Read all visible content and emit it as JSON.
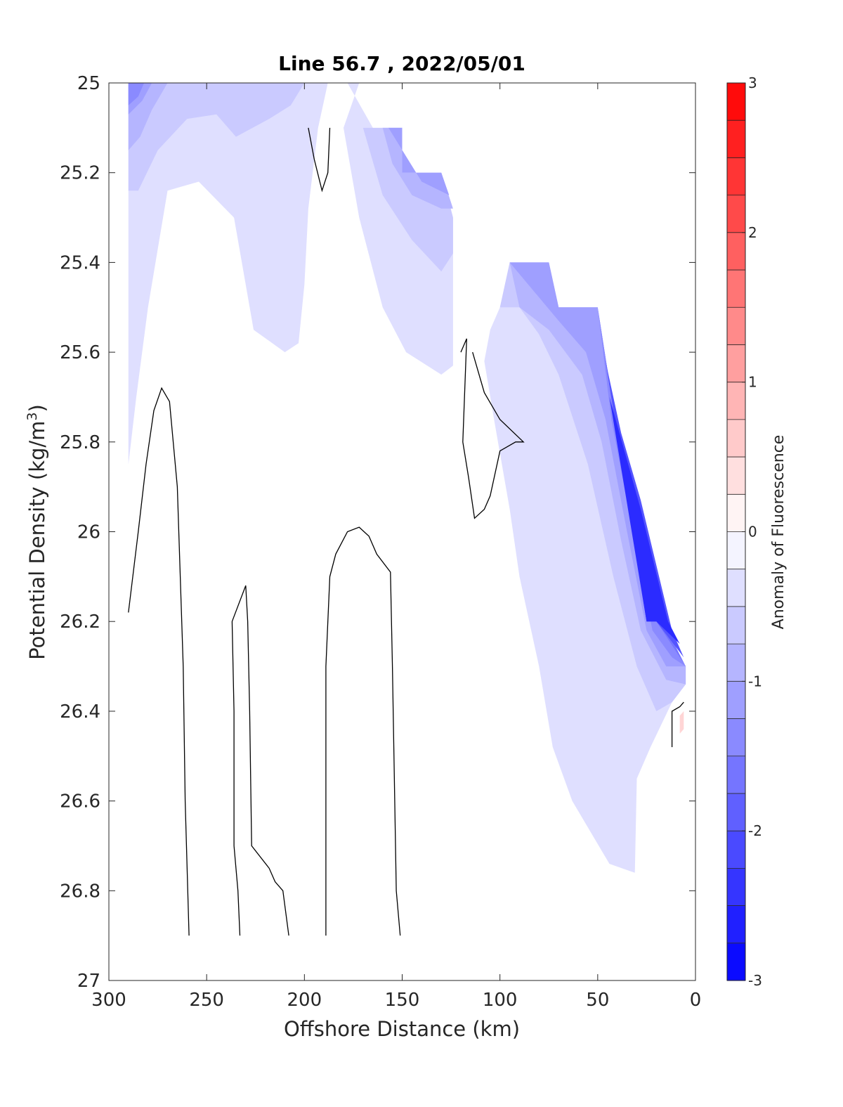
{
  "chart_data": {
    "type": "contour",
    "title": "Line 56.7 , 2022/05/01",
    "xlabel": "Offshore Distance (km)",
    "ylabel": "Potential Density (kg/m",
    "ylabel_sup": "3",
    "ylabel_tail": ")",
    "xlim": [
      300,
      0
    ],
    "ylim": [
      25,
      27
    ],
    "x_reversed": true,
    "y_reversed": true,
    "xticks": [
      300,
      250,
      200,
      150,
      100,
      50,
      0
    ],
    "xtick_labels": [
      "300",
      "250",
      "200",
      "150",
      "100",
      "50",
      "0"
    ],
    "yticks": [
      25,
      25.2,
      25.4,
      25.6,
      25.8,
      26,
      26.2,
      26.4,
      26.6,
      26.8,
      27
    ],
    "ytick_labels": [
      "25",
      "25.2",
      "25.4",
      "25.6",
      "25.8",
      "26",
      "26.2",
      "26.4",
      "26.6",
      "26.8",
      "27"
    ],
    "colorbar": {
      "label": "Anomaly of Fluorescence",
      "range": [
        -3,
        3
      ],
      "step": 0.25,
      "ticks": [
        -3,
        -2,
        -1,
        0,
        1,
        2,
        3
      ],
      "tick_labels": [
        "-3",
        "-2",
        "-1",
        "0",
        "1",
        "2",
        "3"
      ],
      "min_color": "#0000ff",
      "mid_color": "#ffffff",
      "max_color": "#ff0000"
    },
    "filled_regions": [
      {
        "name": "north-surface-layer",
        "level": -0.375,
        "points": [
          [
            290,
            25
          ],
          [
            188,
            25
          ],
          [
            193,
            25.1
          ],
          [
            198,
            25.28
          ],
          [
            200,
            25.45
          ],
          [
            203,
            25.58
          ],
          [
            210,
            25.6
          ],
          [
            226,
            25.55
          ],
          [
            236,
            25.3
          ],
          [
            254,
            25.22
          ],
          [
            270,
            25.24
          ],
          [
            280,
            25.5
          ],
          [
            286,
            25.7
          ],
          [
            290,
            25.85
          ]
        ]
      },
      {
        "name": "north-band-1",
        "level": -0.625,
        "points": [
          [
            290,
            25
          ],
          [
            200,
            25
          ],
          [
            207,
            25.05
          ],
          [
            218,
            25.08
          ],
          [
            235,
            25.12
          ],
          [
            245,
            25.07
          ],
          [
            260,
            25.08
          ],
          [
            275,
            25.15
          ],
          [
            285,
            25.24
          ],
          [
            290,
            25.24
          ]
        ]
      },
      {
        "name": "north-band-2",
        "level": -0.875,
        "points": [
          [
            290,
            25
          ],
          [
            270,
            25
          ],
          [
            278,
            25.06
          ],
          [
            284,
            25.12
          ],
          [
            290,
            25.15
          ]
        ]
      },
      {
        "name": "north-band-3",
        "level": -1.125,
        "points": [
          [
            290,
            25
          ],
          [
            278,
            25
          ],
          [
            283,
            25.04
          ],
          [
            290,
            25.07
          ]
        ]
      },
      {
        "name": "north-band-4",
        "level": -1.375,
        "points": [
          [
            290,
            25
          ],
          [
            282,
            25
          ],
          [
            285,
            25.03
          ],
          [
            290,
            25.05
          ]
        ]
      },
      {
        "name": "mid-upper-layer",
        "level": -0.375,
        "points": [
          [
            178,
            25
          ],
          [
            172,
            25
          ],
          [
            180,
            25.1
          ],
          [
            172,
            25.3
          ],
          [
            160,
            25.5
          ],
          [
            148,
            25.6
          ],
          [
            130,
            25.65
          ],
          [
            124,
            25.63
          ],
          [
            124,
            25.3
          ],
          [
            130,
            25.2
          ],
          [
            150,
            25.2
          ],
          [
            150,
            25.1
          ],
          [
            165,
            25.1
          ]
        ]
      },
      {
        "name": "mid-band-1",
        "level": -0.625,
        "points": [
          [
            170,
            25.1
          ],
          [
            150,
            25.1
          ],
          [
            150,
            25.2
          ],
          [
            130,
            25.2
          ],
          [
            124,
            25.3
          ],
          [
            124,
            25.38
          ],
          [
            130,
            25.42
          ],
          [
            145,
            25.35
          ],
          [
            160,
            25.25
          ]
        ]
      },
      {
        "name": "mid-band-2",
        "level": -0.875,
        "points": [
          [
            160,
            25.1
          ],
          [
            150,
            25.1
          ],
          [
            150,
            25.2
          ],
          [
            130,
            25.2
          ],
          [
            124,
            25.28
          ],
          [
            130,
            25.28
          ],
          [
            145,
            25.25
          ],
          [
            155,
            25.18
          ]
        ]
      },
      {
        "name": "mid-band-3",
        "level": -1.125,
        "points": [
          [
            157,
            25.1
          ],
          [
            150,
            25.1
          ],
          [
            150,
            25.2
          ],
          [
            130,
            25.2
          ],
          [
            126,
            25.25
          ],
          [
            140,
            25.22
          ]
        ]
      },
      {
        "name": "coastal-layer",
        "level": -0.375,
        "points": [
          [
            100,
            25.5
          ],
          [
            105,
            25.55
          ],
          [
            108,
            25.62
          ],
          [
            103,
            25.75
          ],
          [
            95,
            25.95
          ],
          [
            90,
            26.1
          ],
          [
            80,
            26.3
          ],
          [
            73,
            26.48
          ],
          [
            63,
            26.6
          ],
          [
            44,
            26.74
          ],
          [
            31,
            26.76
          ],
          [
            30,
            26.55
          ],
          [
            23,
            26.48
          ],
          [
            12,
            26.38
          ],
          [
            5,
            26.34
          ],
          [
            5,
            26.3
          ],
          [
            20,
            26.2
          ],
          [
            25,
            26.2
          ],
          [
            50,
            25.5
          ],
          [
            55,
            25.5
          ],
          [
            70,
            25.5
          ],
          [
            75,
            25.4
          ],
          [
            95,
            25.4
          ]
        ]
      },
      {
        "name": "coastal-band-1",
        "level": -0.625,
        "points": [
          [
            95,
            25.4
          ],
          [
            75,
            25.4
          ],
          [
            70,
            25.5
          ],
          [
            55,
            25.5
          ],
          [
            50,
            25.5
          ],
          [
            25,
            26.2
          ],
          [
            20,
            26.2
          ],
          [
            5,
            26.3
          ],
          [
            5,
            26.34
          ],
          [
            12,
            26.38
          ],
          [
            20,
            26.4
          ],
          [
            30,
            26.3
          ],
          [
            42,
            26.1
          ],
          [
            55,
            25.85
          ],
          [
            70,
            25.65
          ],
          [
            80,
            25.56
          ],
          [
            90,
            25.5
          ],
          [
            100,
            25.5
          ]
        ]
      },
      {
        "name": "coastal-band-2",
        "level": -0.875,
        "points": [
          [
            95,
            25.4
          ],
          [
            75,
            25.4
          ],
          [
            70,
            25.5
          ],
          [
            55,
            25.5
          ],
          [
            50,
            25.5
          ],
          [
            25,
            26.2
          ],
          [
            20,
            26.2
          ],
          [
            5,
            26.3
          ],
          [
            5,
            26.34
          ],
          [
            15,
            26.33
          ],
          [
            28,
            26.22
          ],
          [
            38,
            26.02
          ],
          [
            48,
            25.8
          ],
          [
            58,
            25.65
          ],
          [
            75,
            25.55
          ],
          [
            90,
            25.5
          ]
        ]
      },
      {
        "name": "coastal-band-3",
        "level": -1.125,
        "points": [
          [
            95,
            25.4
          ],
          [
            75,
            25.4
          ],
          [
            70,
            25.5
          ],
          [
            55,
            25.5
          ],
          [
            50,
            25.5
          ],
          [
            25,
            26.2
          ],
          [
            20,
            26.2
          ],
          [
            5,
            26.3
          ],
          [
            15,
            26.3
          ],
          [
            25,
            26.22
          ],
          [
            35,
            26.0
          ],
          [
            46,
            25.75
          ],
          [
            56,
            25.6
          ],
          [
            70,
            25.53
          ]
        ]
      },
      {
        "name": "coastal-band-4",
        "level": -1.375,
        "points": [
          [
            50,
            25.5
          ],
          [
            25,
            26.2
          ],
          [
            20,
            26.2
          ],
          [
            5,
            26.3
          ],
          [
            12,
            26.28
          ],
          [
            22,
            26.22
          ],
          [
            32,
            26.0
          ],
          [
            43,
            25.75
          ]
        ]
      },
      {
        "name": "coastal-band-5",
        "level": -1.625,
        "points": [
          [
            49,
            25.53
          ],
          [
            25,
            26.2
          ],
          [
            20,
            26.2
          ],
          [
            5,
            26.3
          ],
          [
            12,
            26.24
          ],
          [
            20,
            26.2
          ],
          [
            30,
            25.97
          ],
          [
            41,
            25.75
          ]
        ]
      },
      {
        "name": "coastal-band-6",
        "level": -2.0,
        "points": [
          [
            46,
            25.62
          ],
          [
            25,
            26.2
          ],
          [
            20,
            26.2
          ],
          [
            6,
            26.28
          ],
          [
            12,
            26.22
          ],
          [
            28,
            25.93
          ],
          [
            38,
            25.78
          ]
        ]
      },
      {
        "name": "coastal-band-7",
        "level": -2.5,
        "points": [
          [
            44,
            25.7
          ],
          [
            25,
            26.2
          ],
          [
            20,
            26.2
          ],
          [
            8,
            26.25
          ],
          [
            14,
            26.2
          ],
          [
            28,
            25.95
          ]
        ]
      },
      {
        "name": "nearshore-positive-patch",
        "level": 0.5,
        "points": [
          [
            8,
            26.41
          ],
          [
            6,
            26.4
          ],
          [
            6,
            26.44
          ],
          [
            8,
            26.45
          ]
        ]
      }
    ],
    "zero_contours": [
      {
        "name": "contour-1",
        "points": [
          [
            198,
            25.1
          ],
          [
            195,
            25.17
          ],
          [
            191,
            25.24
          ],
          [
            188,
            25.2
          ],
          [
            187,
            25.1
          ]
        ]
      },
      {
        "name": "contour-2",
        "points": [
          [
            290,
            26.18
          ],
          [
            285,
            26.0
          ],
          [
            281,
            25.85
          ],
          [
            277,
            25.73
          ],
          [
            273,
            25.68
          ],
          [
            269,
            25.71
          ],
          [
            265,
            25.9
          ],
          [
            262,
            26.3
          ],
          [
            261,
            26.6
          ],
          [
            259,
            26.9
          ]
        ]
      },
      {
        "name": "contour-3",
        "points": [
          [
            233,
            26.9
          ],
          [
            234,
            26.8
          ],
          [
            236,
            26.7
          ],
          [
            236,
            26.4
          ],
          [
            237,
            26.2
          ],
          [
            230,
            26.12
          ],
          [
            229,
            26.2
          ],
          [
            228,
            26.4
          ],
          [
            227,
            26.7
          ],
          [
            218,
            26.75
          ],
          [
            215,
            26.78
          ],
          [
            211,
            26.8
          ],
          [
            208,
            26.9
          ]
        ]
      },
      {
        "name": "contour-4",
        "points": [
          [
            189,
            26.9
          ],
          [
            189,
            26.3
          ],
          [
            187,
            26.1
          ],
          [
            184,
            26.05
          ],
          [
            178,
            26.0
          ],
          [
            172,
            25.99
          ],
          [
            167,
            26.01
          ],
          [
            163,
            26.05
          ],
          [
            156,
            26.09
          ],
          [
            155,
            26.3
          ],
          [
            153,
            26.8
          ],
          [
            151,
            26.9
          ]
        ]
      },
      {
        "name": "contour-5",
        "points": [
          [
            120,
            25.6
          ],
          [
            117,
            25.57
          ],
          [
            119,
            25.8
          ],
          [
            116,
            25.88
          ],
          [
            113,
            25.97
          ],
          [
            108,
            25.95
          ],
          [
            105,
            25.92
          ],
          [
            100,
            25.82
          ],
          [
            92,
            25.8
          ],
          [
            88,
            25.8
          ],
          [
            100,
            25.75
          ],
          [
            108,
            25.69
          ],
          [
            114,
            25.6
          ]
        ]
      },
      {
        "name": "contour-6",
        "points": [
          [
            12,
            26.48
          ],
          [
            12,
            26.4
          ],
          [
            8,
            26.39
          ],
          [
            6,
            26.38
          ]
        ]
      }
    ]
  }
}
